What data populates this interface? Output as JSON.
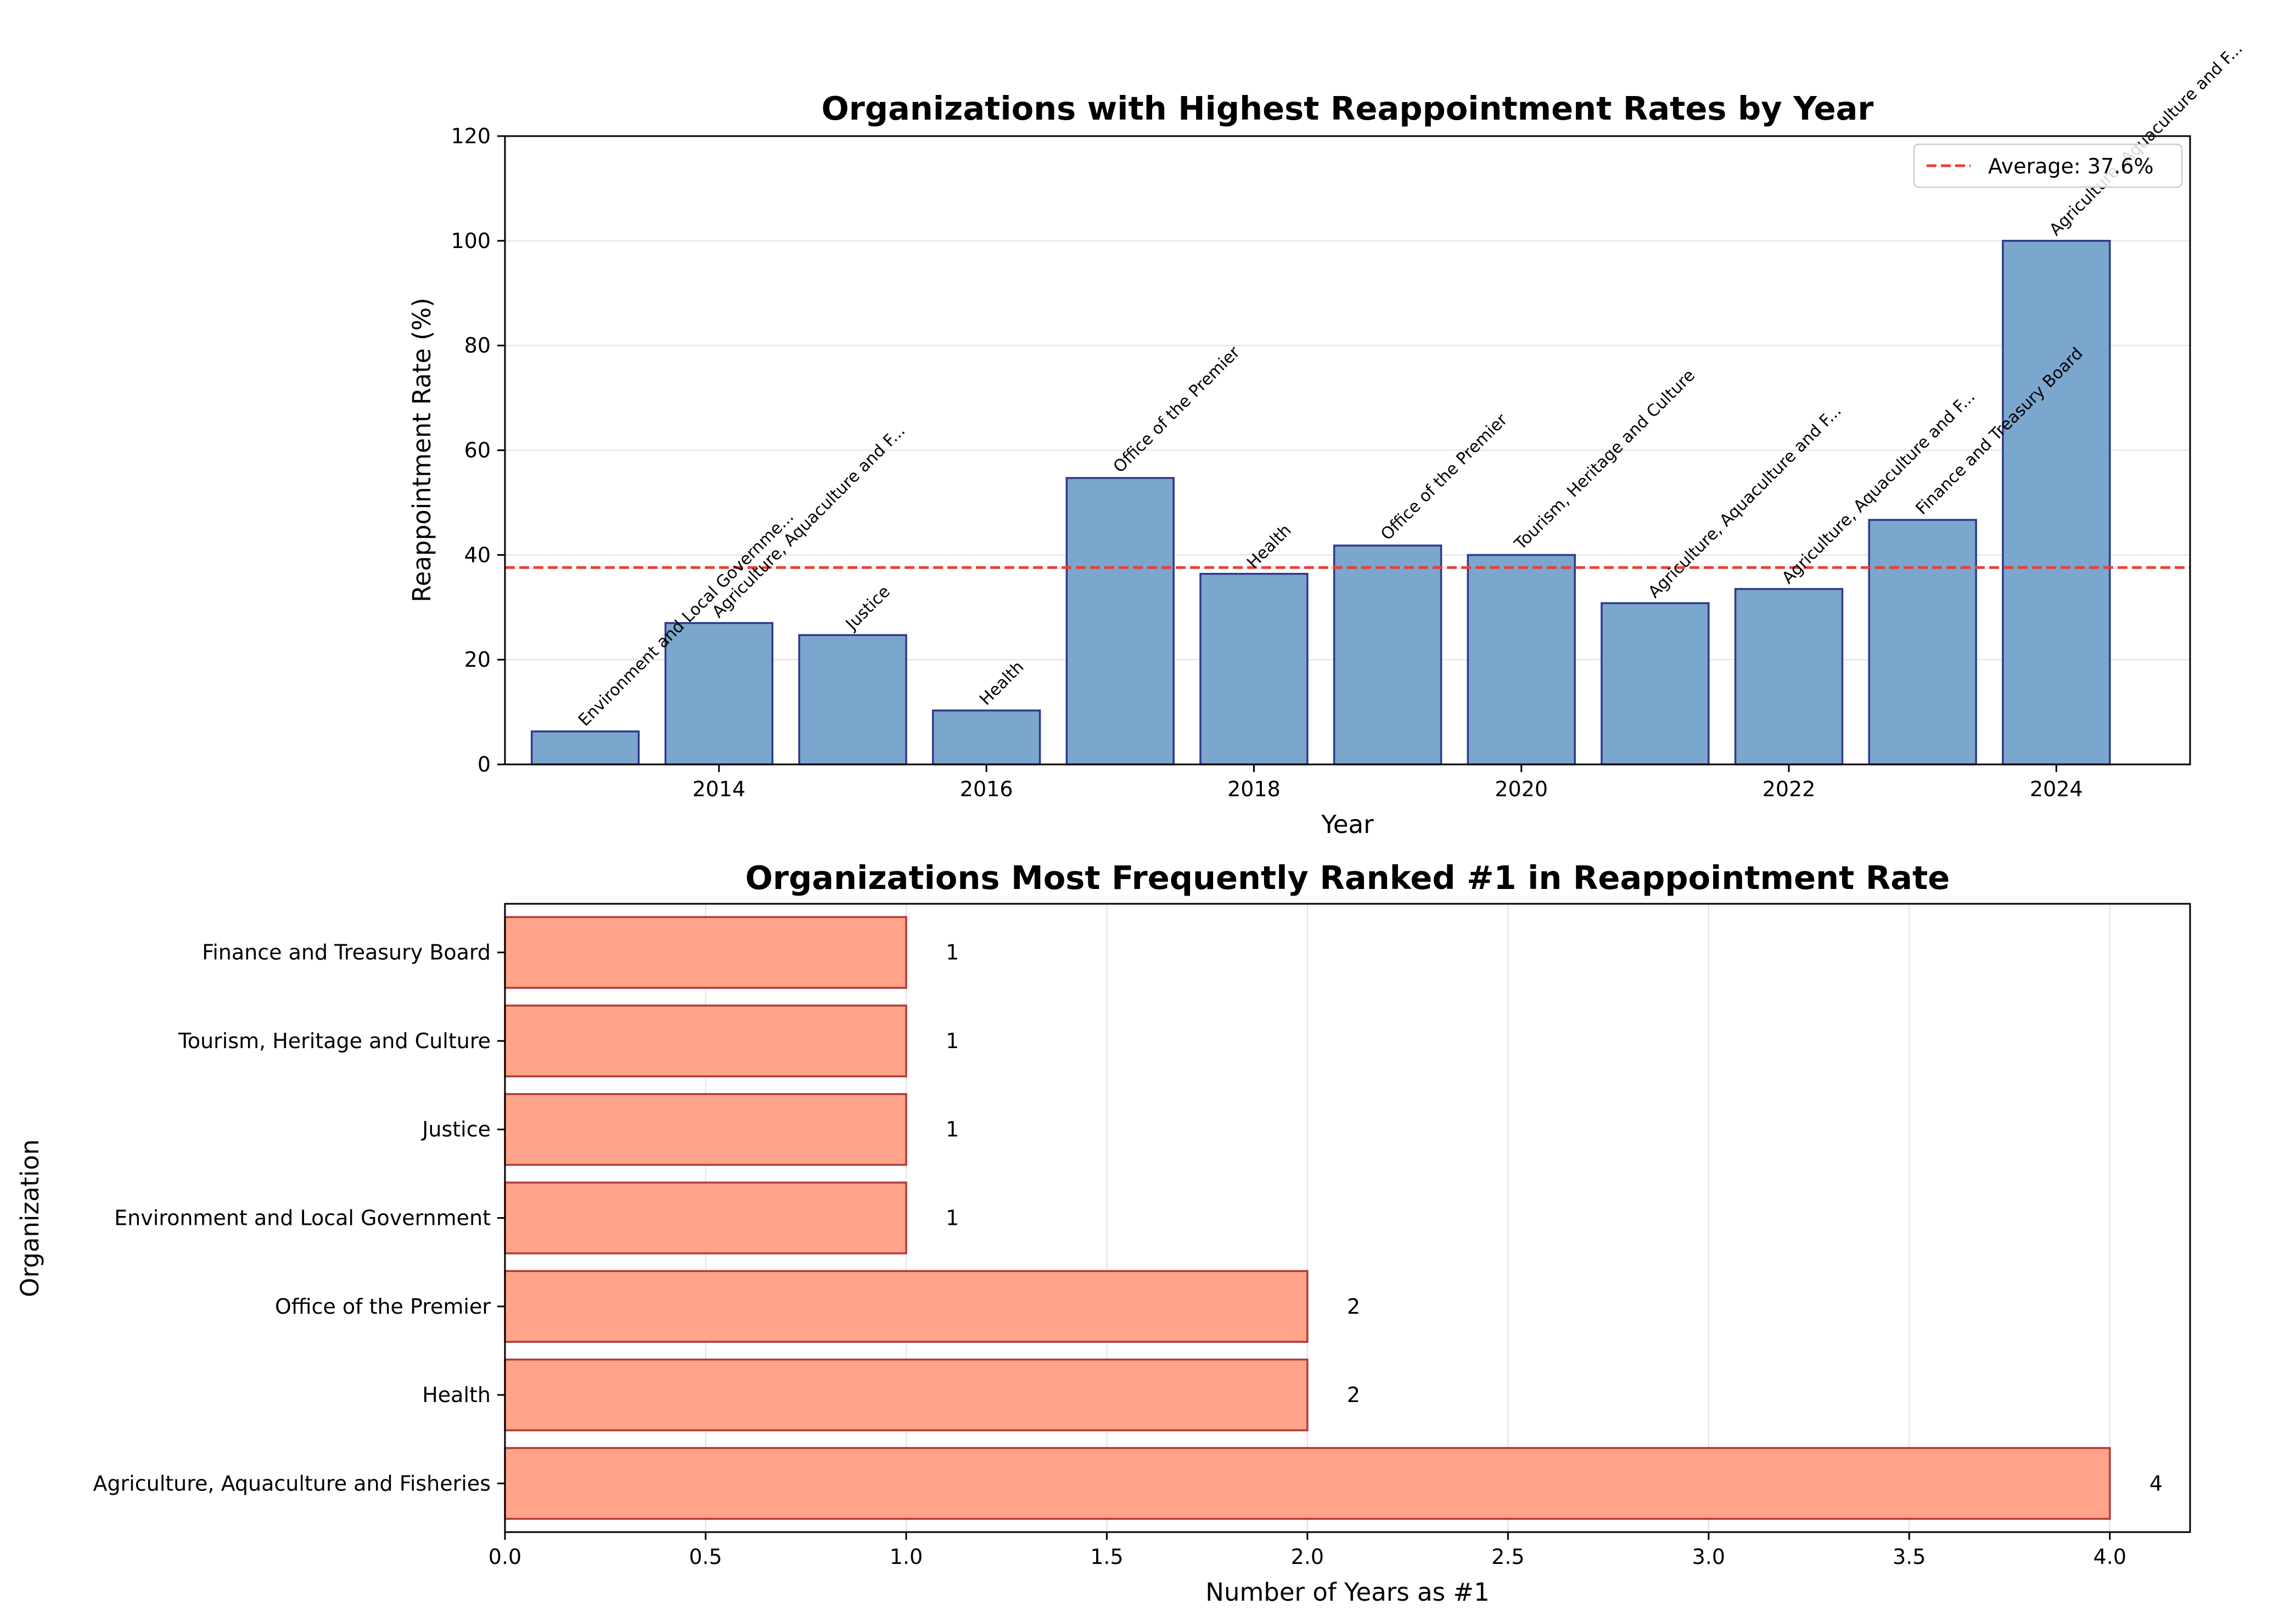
{
  "chart_data": [
    {
      "type": "bar",
      "title": "Organizations with Highest Reappointment Rates by Year",
      "xlabel": "Year",
      "ylabel": "Reappointment Rate (%)",
      "x_ticks": [
        "2014",
        "2016",
        "2018",
        "2020",
        "2022",
        "2024"
      ],
      "y_ticks": [
        "0",
        "20",
        "40",
        "60",
        "80",
        "100",
        "120"
      ],
      "xlim": [
        2012.4,
        2025.0
      ],
      "ylim": [
        0,
        120
      ],
      "grid": "y",
      "bar_color": "#7BA6CD",
      "bar_edge_color": "#2E3A8C",
      "legend_position": "top-right",
      "average_line": {
        "label": "Average: 37.6%",
        "value": 37.6,
        "color": "#E8403A"
      },
      "bars": [
        {
          "year": 2013,
          "value": 6.3,
          "org": "Environment and Local Governme..."
        },
        {
          "year": 2014,
          "value": 27.0,
          "org": "Agriculture, Aquaculture and F..."
        },
        {
          "year": 2015,
          "value": 24.7,
          "org": "Justice"
        },
        {
          "year": 2016,
          "value": 10.3,
          "org": "Health"
        },
        {
          "year": 2017,
          "value": 54.7,
          "org": "Office of the Premier"
        },
        {
          "year": 2018,
          "value": 36.4,
          "org": "Health"
        },
        {
          "year": 2019,
          "value": 41.8,
          "org": "Office of the Premier"
        },
        {
          "year": 2020,
          "value": 40.0,
          "org": "Tourism, Heritage and Culture"
        },
        {
          "year": 2021,
          "value": 30.8,
          "org": "Agriculture, Aquaculture and F..."
        },
        {
          "year": 2022,
          "value": 33.5,
          "org": "Agriculture, Aquaculture and F..."
        },
        {
          "year": 2023,
          "value": 46.7,
          "org": "Finance and Treasury Board"
        },
        {
          "year": 2024,
          "value": 100.0,
          "org": "Agriculture, Aquaculture and F..."
        }
      ]
    },
    {
      "type": "bar",
      "orientation": "horizontal",
      "title": "Organizations Most Frequently Ranked #1 in Reappointment Rate",
      "xlabel": "Number of Years as #1",
      "ylabel": "Organization",
      "x_ticks": [
        "0.0",
        "0.5",
        "1.0",
        "1.5",
        "2.0",
        "2.5",
        "3.0",
        "3.5",
        "4.0"
      ],
      "xlim": [
        0,
        4.2
      ],
      "grid": "x",
      "bar_color": "#FFA488",
      "bar_edge_color": "#B03A3A",
      "categories": [
        "Agriculture, Aquaculture and Fisheries",
        "Health",
        "Office of the Premier",
        "Environment and Local Government",
        "Justice",
        "Tourism, Heritage and Culture",
        "Finance and Treasury Board"
      ],
      "values": [
        4,
        2,
        2,
        1,
        1,
        1,
        1
      ],
      "value_labels": [
        "4",
        "2",
        "2",
        "1",
        "1",
        "1",
        "1"
      ]
    }
  ]
}
